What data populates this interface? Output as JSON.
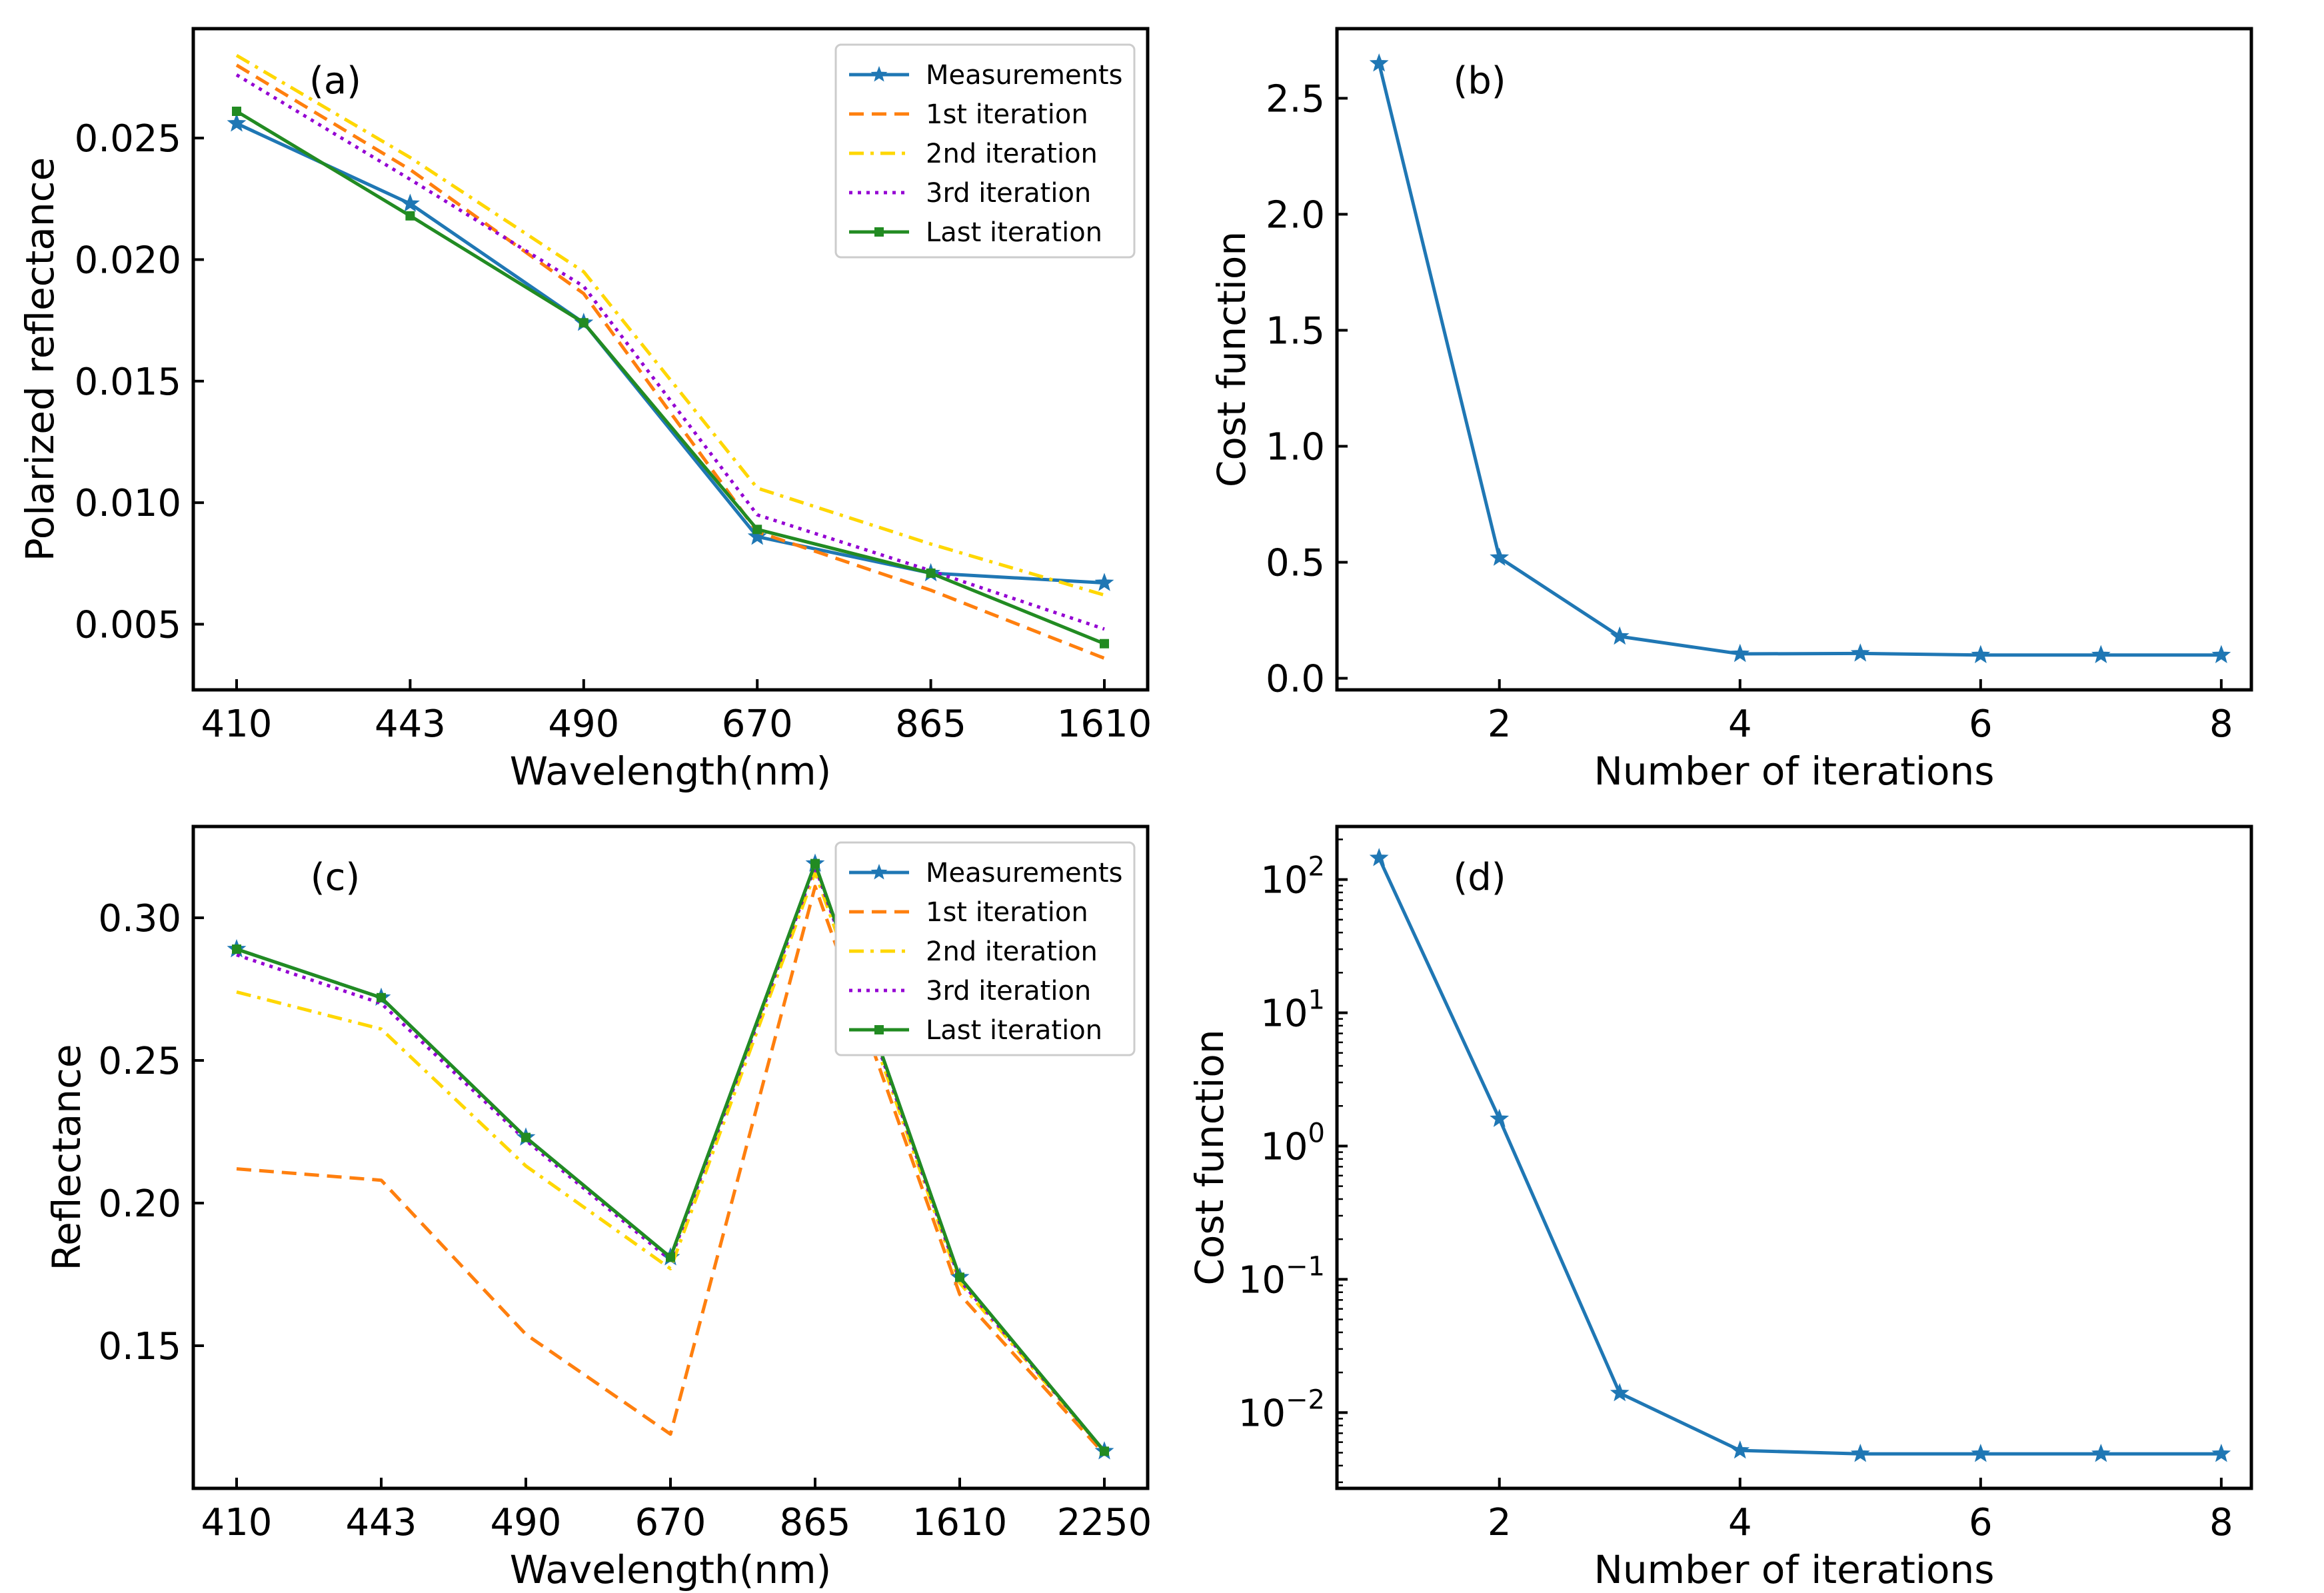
{
  "chart_data": [
    {
      "panel_label": "(a)",
      "type": "line",
      "x_scale": "categorical",
      "categories": [
        "410",
        "443",
        "490",
        "670",
        "865",
        "1610"
      ],
      "xlabel": "Wavelength(nm)",
      "ylabel": "Polarized reflectance",
      "ylim": [
        0.0023,
        0.0295
      ],
      "yticks": [
        0.005,
        0.01,
        0.015,
        0.02,
        0.025
      ],
      "ytick_labels": [
        "0.005",
        "0.010",
        "0.015",
        "0.020",
        "0.025"
      ],
      "legend_position": "top-right",
      "series": [
        {
          "name": "Measurements",
          "values": [
            0.0256,
            0.0223,
            0.0174,
            0.0086,
            0.0071,
            0.0067
          ],
          "color": "#1f77b4",
          "dash": "solid",
          "marker": "star"
        },
        {
          "name": "1st iteration",
          "values": [
            0.028,
            0.0237,
            0.0186,
            0.0088,
            0.0064,
            0.0036
          ],
          "color": "#ff7f0e",
          "dash": "dashed",
          "marker": "none"
        },
        {
          "name": "2nd iteration",
          "values": [
            0.0284,
            0.0242,
            0.0195,
            0.0106,
            0.0083,
            0.0062
          ],
          "color": "#ffd700",
          "dash": "dashdot",
          "marker": "none"
        },
        {
          "name": "3rd iteration",
          "values": [
            0.0276,
            0.0233,
            0.0189,
            0.0095,
            0.0072,
            0.0048
          ],
          "color": "#9400d3",
          "dash": "dotted",
          "marker": "none"
        },
        {
          "name": "Last iteration",
          "values": [
            0.0261,
            0.0218,
            0.0174,
            0.0089,
            0.0071,
            0.0042
          ],
          "color": "#228b22",
          "dash": "solid",
          "marker": "square"
        }
      ]
    },
    {
      "panel_label": "(b)",
      "type": "line",
      "x_scale": "linear",
      "x": [
        1,
        2,
        3,
        4,
        5,
        6,
        7,
        8
      ],
      "xlabel": "Number of iterations",
      "ylabel": "Cost function",
      "xlim": [
        0.65,
        8.25
      ],
      "ylim": [
        -0.05,
        2.8
      ],
      "xticks": [
        2,
        4,
        6,
        8
      ],
      "xtick_labels": [
        "2",
        "4",
        "6",
        "8"
      ],
      "yticks": [
        0.0,
        0.5,
        1.0,
        1.5,
        2.0,
        2.5
      ],
      "ytick_labels": [
        "0.0",
        "0.5",
        "1.0",
        "1.5",
        "2.0",
        "2.5"
      ],
      "series": [
        {
          "values": [
            2.65,
            0.52,
            0.18,
            0.105,
            0.107,
            0.1,
            0.1,
            0.1
          ],
          "color": "#1f77b4",
          "dash": "solid",
          "marker": "star"
        }
      ]
    },
    {
      "panel_label": "(c)",
      "type": "line",
      "x_scale": "categorical",
      "categories": [
        "410",
        "443",
        "490",
        "670",
        "865",
        "1610",
        "2250"
      ],
      "xlabel": "Wavelength(nm)",
      "ylabel": "Reflectance",
      "ylim": [
        0.1,
        0.332
      ],
      "yticks": [
        0.15,
        0.2,
        0.25,
        0.3
      ],
      "ytick_labels": [
        "0.15",
        "0.20",
        "0.25",
        "0.30"
      ],
      "legend_position": "top-right",
      "series": [
        {
          "name": "Measurements",
          "values": [
            0.289,
            0.272,
            0.223,
            0.181,
            0.319,
            0.174,
            0.113
          ],
          "color": "#1f77b4",
          "dash": "solid",
          "marker": "star"
        },
        {
          "name": "1st iteration",
          "values": [
            0.212,
            0.208,
            0.154,
            0.119,
            0.311,
            0.168,
            0.112
          ],
          "color": "#ff7f0e",
          "dash": "dashed",
          "marker": "none"
        },
        {
          "name": "2nd iteration",
          "values": [
            0.274,
            0.261,
            0.213,
            0.177,
            0.316,
            0.172,
            0.113
          ],
          "color": "#ffd700",
          "dash": "dashdot",
          "marker": "none"
        },
        {
          "name": "3rd iteration",
          "values": [
            0.287,
            0.27,
            0.222,
            0.18,
            0.318,
            0.173,
            0.113
          ],
          "color": "#9400d3",
          "dash": "dotted",
          "marker": "none"
        },
        {
          "name": "Last iteration",
          "values": [
            0.289,
            0.272,
            0.223,
            0.181,
            0.319,
            0.174,
            0.113
          ],
          "color": "#228b22",
          "dash": "solid",
          "marker": "square"
        }
      ]
    },
    {
      "panel_label": "(d)",
      "type": "line",
      "x_scale": "linear",
      "y_scale": "log",
      "x": [
        1,
        2,
        3,
        4,
        5,
        6,
        7,
        8
      ],
      "xlabel": "Number of iterations",
      "ylabel": "Cost function",
      "xlim": [
        0.65,
        8.25
      ],
      "ylim": [
        0.0027,
        250
      ],
      "xticks": [
        2,
        4,
        6,
        8
      ],
      "xtick_labels": [
        "2",
        "4",
        "6",
        "8"
      ],
      "yticks": [
        0.01,
        0.1,
        1,
        10,
        100
      ],
      "ytick_labels": [
        "10^-2",
        "10^-1",
        "10^0",
        "10^1",
        "10^2"
      ],
      "series": [
        {
          "values": [
            145,
            1.6,
            0.014,
            0.0052,
            0.0049,
            0.0049,
            0.0049,
            0.0049
          ],
          "color": "#1f77b4",
          "dash": "solid",
          "marker": "star"
        }
      ]
    }
  ]
}
